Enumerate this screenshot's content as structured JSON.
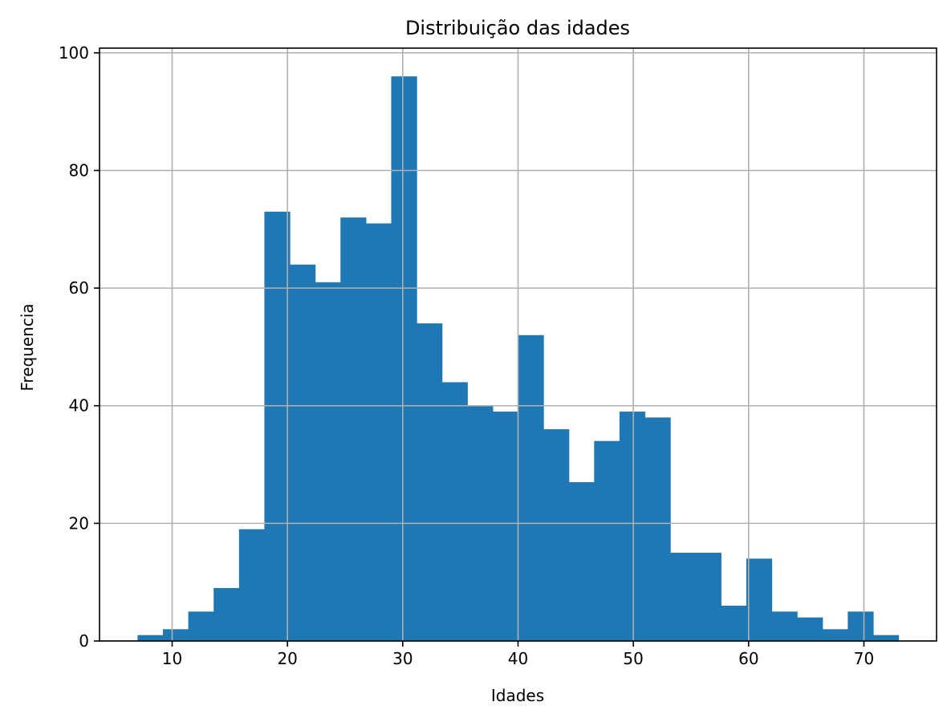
{
  "chart_data": {
    "type": "bar",
    "title": "Distribuição das idades",
    "xlabel": "Idades",
    "ylabel": "Frequencia",
    "xlim": [
      3.7,
      76.3
    ],
    "ylim": [
      0,
      100.8
    ],
    "grid": true,
    "bar_color": "#1f77b4",
    "grid_color": "#b0b0b0",
    "xticks": [
      10,
      20,
      30,
      40,
      50,
      60,
      70
    ],
    "yticks": [
      0,
      20,
      40,
      60,
      80,
      100
    ],
    "bins": [
      {
        "x0": 7.0,
        "x1": 9.2,
        "value": 1
      },
      {
        "x0": 9.2,
        "x1": 11.4,
        "value": 2
      },
      {
        "x0": 11.4,
        "x1": 13.6,
        "value": 5
      },
      {
        "x0": 13.6,
        "x1": 15.8,
        "value": 9
      },
      {
        "x0": 15.8,
        "x1": 18.0,
        "value": 19
      },
      {
        "x0": 18.0,
        "x1": 20.2,
        "value": 73
      },
      {
        "x0": 20.2,
        "x1": 22.4,
        "value": 64
      },
      {
        "x0": 22.4,
        "x1": 24.6,
        "value": 61
      },
      {
        "x0": 24.6,
        "x1": 26.8,
        "value": 72
      },
      {
        "x0": 26.8,
        "x1": 29.0,
        "value": 71
      },
      {
        "x0": 29.0,
        "x1": 31.2,
        "value": 96
      },
      {
        "x0": 31.2,
        "x1": 33.4,
        "value": 54
      },
      {
        "x0": 33.4,
        "x1": 35.6,
        "value": 44
      },
      {
        "x0": 35.6,
        "x1": 37.8,
        "value": 40
      },
      {
        "x0": 37.8,
        "x1": 40.0,
        "value": 39
      },
      {
        "x0": 40.0,
        "x1": 42.2,
        "value": 52
      },
      {
        "x0": 42.2,
        "x1": 44.4,
        "value": 36
      },
      {
        "x0": 44.4,
        "x1": 46.6,
        "value": 27
      },
      {
        "x0": 46.6,
        "x1": 48.8,
        "value": 34
      },
      {
        "x0": 48.8,
        "x1": 51.0,
        "value": 39
      },
      {
        "x0": 51.0,
        "x1": 53.2,
        "value": 38
      },
      {
        "x0": 53.2,
        "x1": 55.4,
        "value": 15
      },
      {
        "x0": 55.4,
        "x1": 57.6,
        "value": 15
      },
      {
        "x0": 57.6,
        "x1": 59.8,
        "value": 6
      },
      {
        "x0": 59.8,
        "x1": 62.0,
        "value": 14
      },
      {
        "x0": 62.0,
        "x1": 64.2,
        "value": 5
      },
      {
        "x0": 64.2,
        "x1": 66.4,
        "value": 4
      },
      {
        "x0": 66.4,
        "x1": 68.6,
        "value": 2
      },
      {
        "x0": 68.6,
        "x1": 70.8,
        "value": 5
      },
      {
        "x0": 70.8,
        "x1": 73.0,
        "value": 1
      }
    ]
  }
}
